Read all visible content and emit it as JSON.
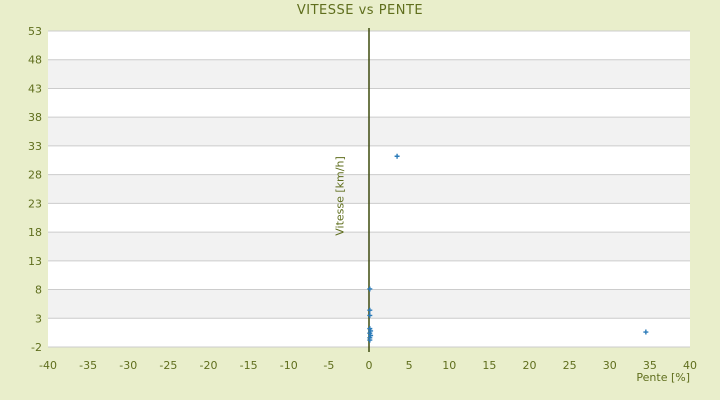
{
  "title": "VITESSE vs PENTE",
  "colors": {
    "page_background": "#e9eecb",
    "plot_background": "#ffffff",
    "band_shade": "#f2f2f2",
    "gridline": "#cccccc",
    "axis_line": "#3e4b0f",
    "text": "#5f6e1d",
    "marker": "#2b7bb9"
  },
  "chart_data": {
    "type": "scatter",
    "title": "VITESSE vs PENTE",
    "xlabel": "Pente [%]",
    "ylabel": "Vitesse [km/h]",
    "xlim": [
      -40,
      40
    ],
    "ylim": [
      -2,
      53
    ],
    "x_ticks": [
      -40,
      -35,
      -30,
      -25,
      -20,
      -15,
      -10,
      -5,
      0,
      5,
      10,
      15,
      20,
      25,
      30,
      35,
      40
    ],
    "y_ticks": [
      53,
      48,
      43,
      38,
      33,
      28,
      23,
      18,
      13,
      8,
      3,
      -2
    ],
    "grid": "horizontal gridlines with alternating band shading",
    "legend": "none",
    "marker_style": "small plus",
    "points": [
      {
        "x": 3.5,
        "y": 31.2
      },
      {
        "x": 34.5,
        "y": 0.6
      },
      {
        "x": 0.1,
        "y": 8.1
      },
      {
        "x": 0.1,
        "y": 4.4
      },
      {
        "x": 0.1,
        "y": 3.5
      },
      {
        "x": 0.1,
        "y": 1.2
      },
      {
        "x": 0.2,
        "y": 0.8
      },
      {
        "x": 0.1,
        "y": 0.4
      },
      {
        "x": 0.2,
        "y": 0.0
      },
      {
        "x": 0.1,
        "y": -0.4
      },
      {
        "x": 0.1,
        "y": -0.8
      }
    ]
  }
}
